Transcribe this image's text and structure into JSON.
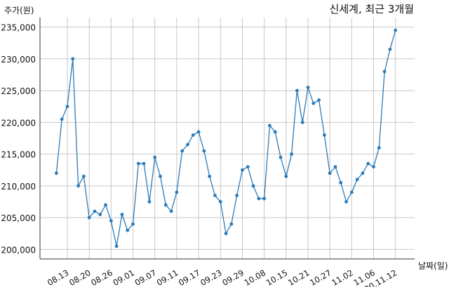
{
  "chart_data": {
    "type": "line",
    "title": "신세계, 최근 3개월",
    "ylabel": "주가(원)",
    "xlabel": "날짜(일)",
    "ylim": [
      198500,
      236500
    ],
    "yticks": [
      200000,
      205000,
      210000,
      215000,
      220000,
      225000,
      230000,
      235000
    ],
    "ytick_labels": [
      "200,000",
      "205,000",
      "210,000",
      "215,000",
      "220,000",
      "225,000",
      "230,000",
      "235,000"
    ],
    "xlim": [
      -3,
      65.5
    ],
    "xticks": [
      2,
      6,
      10,
      14,
      18,
      22,
      26,
      30,
      34,
      38,
      42,
      46,
      50,
      54,
      58,
      62
    ],
    "xtick_labels": [
      "08.13",
      "08.20",
      "08.26",
      "09.01",
      "09.07",
      "09.11",
      "09.17",
      "09.23",
      "09.29",
      "10.08",
      "10.15",
      "10.21",
      "10.27",
      "11.02",
      "11.06",
      "20.11.12"
    ],
    "grid": true,
    "line_color": "#2b7bba",
    "series": [
      {
        "name": "",
        "values": [
          212000,
          220500,
          222500,
          230000,
          210000,
          211500,
          205000,
          206000,
          205500,
          207000,
          204500,
          200500,
          205500,
          203000,
          204000,
          213500,
          213500,
          207500,
          214500,
          211500,
          207000,
          206000,
          209000,
          215500,
          216500,
          218000,
          218500,
          215500,
          211500,
          208500,
          207500,
          202500,
          204000,
          208500,
          212500,
          213000,
          210000,
          208000,
          208000,
          219500,
          218500,
          214500,
          211500,
          215000,
          225000,
          220000,
          225500,
          223000,
          223500,
          218000,
          212000,
          213000,
          210500,
          207500,
          209000,
          211000,
          212000,
          213500,
          213000,
          216000,
          228000,
          231500,
          234500
        ]
      }
    ]
  }
}
